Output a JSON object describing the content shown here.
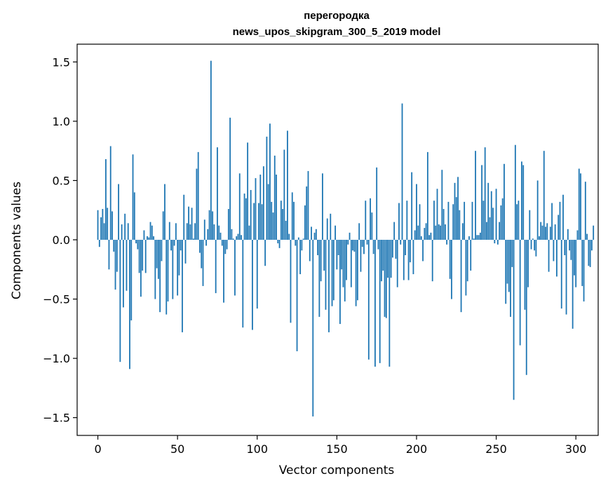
{
  "chart_data": {
    "type": "bar",
    "title_line1": "перегородка",
    "title_line2": "news_upos_skipgram_300_5_2019 model",
    "xlabel": "Vector components",
    "ylabel": "Components values",
    "xlim": [
      -13,
      314
    ],
    "ylim": [
      -1.65,
      1.65
    ],
    "xticks": [
      0,
      50,
      100,
      150,
      200,
      250,
      300
    ],
    "yticks": [
      -1.5,
      -1.0,
      -0.5,
      0.0,
      0.5,
      1.0,
      1.5
    ],
    "ytick_labels": [
      "−1.5",
      "−1.0",
      "−0.5",
      "0.0",
      "0.5",
      "1.0",
      "1.5"
    ],
    "grid": false,
    "bar_color": "#1f77b4",
    "values": [
      0.25,
      -0.06,
      0.19,
      0.26,
      0.14,
      0.68,
      0.27,
      -0.25,
      0.79,
      0.24,
      -0.1,
      -0.42,
      -0.27,
      0.47,
      -1.03,
      0.13,
      -0.57,
      0.22,
      -0.43,
      0.14,
      -1.09,
      -0.68,
      0.72,
      0.4,
      -0.03,
      -0.08,
      -0.28,
      -0.48,
      -0.26,
      0.08,
      -0.28,
      0.03,
      0.02,
      0.15,
      0.12,
      0.03,
      -0.5,
      -0.24,
      -0.33,
      -0.61,
      -0.18,
      0.24,
      0.47,
      -0.63,
      -0.52,
      0.15,
      -0.09,
      -0.5,
      -0.05,
      0.14,
      -0.47,
      -0.3,
      -0.09,
      -0.78,
      0.38,
      -0.2,
      0.14,
      0.28,
      0.13,
      0.27,
      0.01,
      0.14,
      0.6,
      0.74,
      -0.11,
      -0.24,
      -0.39,
      0.17,
      -0.05,
      0.09,
      0.25,
      1.51,
      0.24,
      0.13,
      -0.45,
      0.78,
      0.12,
      0.06,
      -0.05,
      -0.53,
      -0.12,
      -0.08,
      0.26,
      1.03,
      0.09,
      0.01,
      -0.47,
      0.03,
      0.05,
      0.56,
      0.04,
      -0.74,
      0.39,
      0.35,
      0.82,
      0.12,
      0.42,
      -0.76,
      0.31,
      0.52,
      -0.58,
      0.31,
      0.55,
      0.3,
      0.62,
      -0.22,
      0.87,
      0.47,
      0.98,
      0.32,
      0.23,
      0.71,
      0.55,
      -0.03,
      -0.07,
      0.33,
      0.26,
      0.76,
      0.16,
      0.92,
      0.05,
      -0.7,
      0.4,
      0.32,
      -0.05,
      -0.94,
      0.02,
      -0.29,
      -0.09,
      0.01,
      0.29,
      0.45,
      0.58,
      -0.18,
      0.11,
      -1.49,
      0.06,
      0.09,
      -0.13,
      -0.65,
      -0.35,
      0.56,
      -0.26,
      -0.59,
      0.18,
      -0.78,
      0.22,
      -0.56,
      -0.51,
      0.12,
      -0.25,
      -0.13,
      -0.71,
      -0.25,
      -0.4,
      -0.52,
      -0.34,
      -0.04,
      0.06,
      -0.4,
      -0.09,
      -0.1,
      -0.56,
      -0.51,
      0.14,
      -0.27,
      -0.06,
      -0.12,
      0.33,
      -0.04,
      -1.01,
      0.35,
      0.23,
      -0.12,
      -1.07,
      0.61,
      -0.08,
      -1.04,
      -0.35,
      -0.26,
      -0.65,
      -0.66,
      -0.32,
      -1.07,
      -0.32,
      -0.15,
      0.15,
      -0.16,
      -0.4,
      0.31,
      -0.04,
      1.15,
      -0.34,
      -0.13,
      0.33,
      -0.34,
      -0.19,
      0.57,
      -0.29,
      0.08,
      0.47,
      0.12,
      0.3,
      0.03,
      -0.18,
      0.1,
      0.14,
      0.74,
      0.04,
      0.06,
      -0.35,
      0.33,
      0.12,
      0.43,
      0.13,
      0.12,
      0.59,
      0.26,
      0.13,
      -0.04,
      0.32,
      -0.33,
      -0.5,
      0.3,
      0.48,
      0.36,
      0.53,
      0.25,
      -0.61,
      0.14,
      0.32,
      -0.47,
      -0.35,
      0.03,
      -0.26,
      0.32,
      0.01,
      0.75,
      0.04,
      0.04,
      0.06,
      0.63,
      0.33,
      0.78,
      0.15,
      0.48,
      0.19,
      0.41,
      0.27,
      -0.03,
      0.43,
      -0.04,
      0.15,
      0.29,
      0.35,
      0.64,
      -0.54,
      -0.37,
      -0.44,
      -0.65,
      -0.23,
      -1.35,
      0.8,
      0.3,
      0.33,
      -0.89,
      0.66,
      0.63,
      -0.59,
      -1.14,
      -0.4,
      0.25,
      -0.08,
      0.01,
      -0.09,
      -0.14,
      0.5,
      0.03,
      0.15,
      0.12,
      0.75,
      0.11,
      0.14,
      -0.27,
      0.11,
      0.31,
      -0.18,
      0.13,
      -0.31,
      0.21,
      0.32,
      -0.58,
      0.38,
      -0.13,
      -0.63,
      0.09,
      -0.09,
      -0.17,
      -0.75,
      -0.3,
      -0.4,
      0.08,
      0.6,
      0.56,
      -0.39,
      -0.52,
      0.49,
      0.05,
      -0.22,
      -0.23,
      -0.09,
      0.12
    ]
  }
}
